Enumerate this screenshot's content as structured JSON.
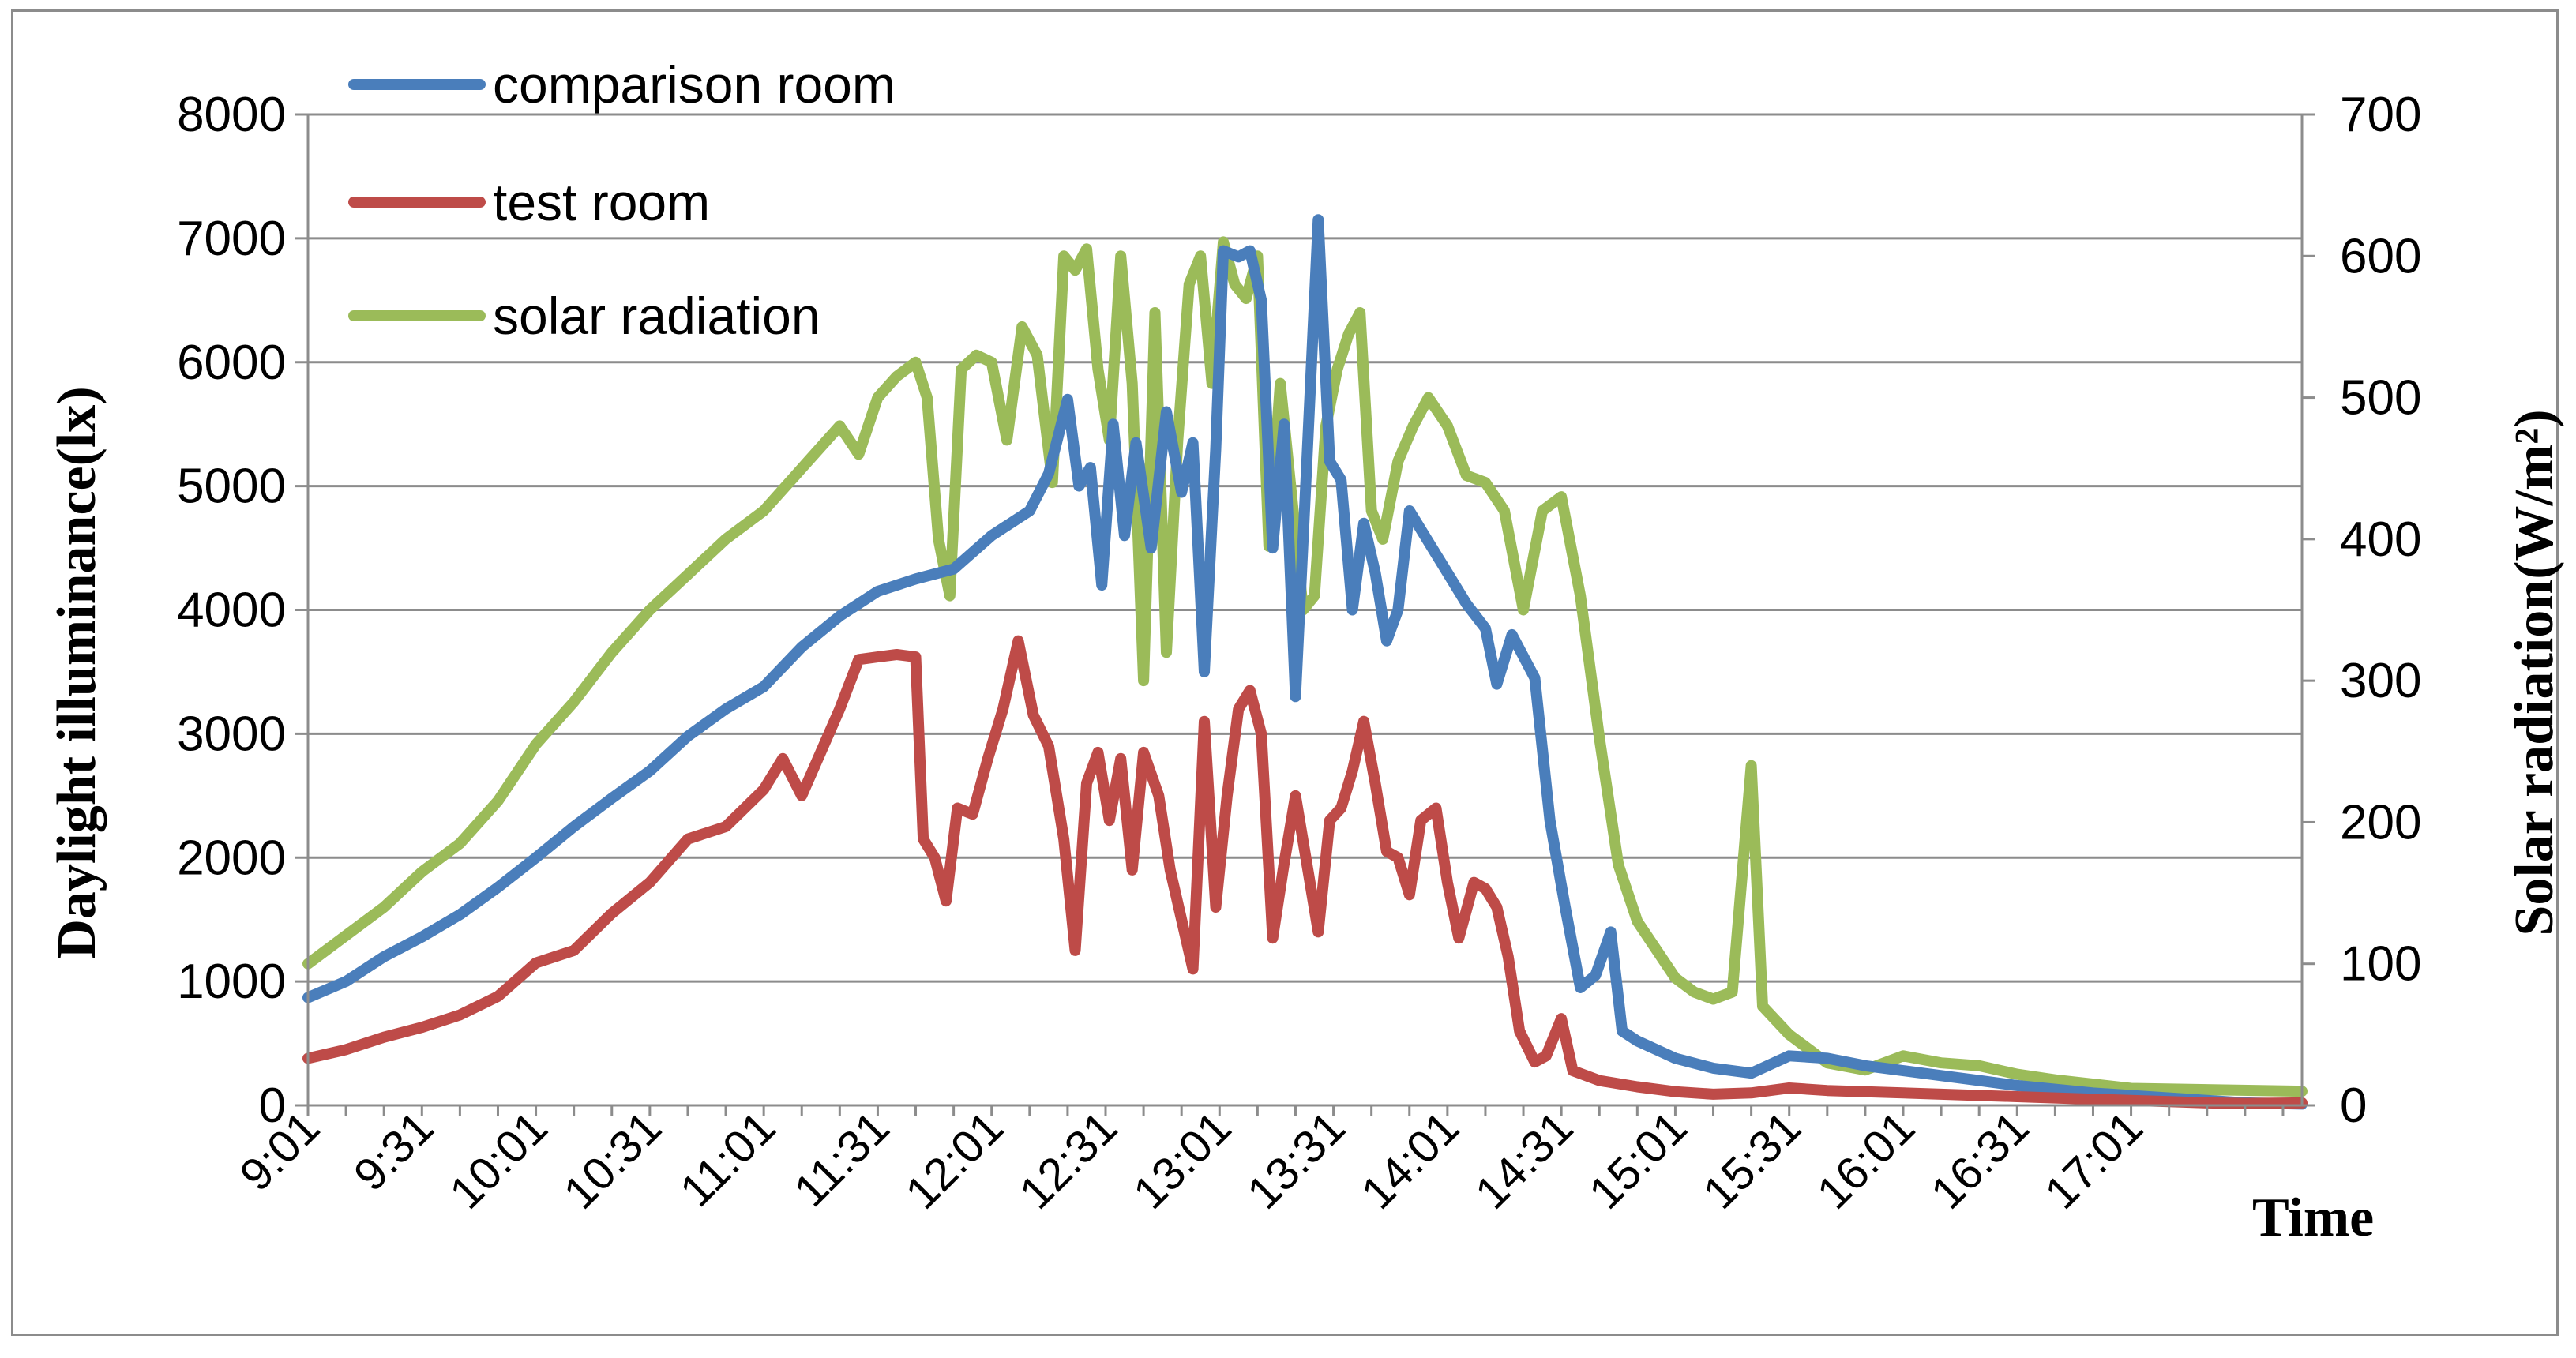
{
  "chart_data": {
    "type": "line",
    "ylabel": "Daylight illuminance(lx)",
    "y2label": "Solar radiation(W/m²)",
    "xlabel": "Time",
    "ylim": [
      0,
      8000
    ],
    "y2lim": [
      0,
      700
    ],
    "y_ticks": [
      "0",
      "1000",
      "2000",
      "3000",
      "4000",
      "5000",
      "6000",
      "7000",
      "8000"
    ],
    "y2_ticks": [
      "0",
      "100",
      "200",
      "300",
      "400",
      "500",
      "600",
      "700"
    ],
    "x_ticks": [
      "9:01",
      "9:31",
      "10:01",
      "10:31",
      "11:01",
      "11:31",
      "12:01",
      "12:31",
      "13:01",
      "13:31",
      "14:01",
      "14:31",
      "15:01",
      "15:31",
      "16:01",
      "16:31",
      "17:01"
    ],
    "xlim": [
      "9:01",
      "17:46"
    ],
    "grid": "horizontal",
    "legend": "top-left",
    "series": [
      {
        "name": "comparison room",
        "axis": "left",
        "color": "#4a7ebb",
        "points": [
          [
            "9:01",
            870
          ],
          [
            "9:11",
            1000
          ],
          [
            "9:21",
            1200
          ],
          [
            "9:31",
            1360
          ],
          [
            "9:41",
            1540
          ],
          [
            "9:51",
            1760
          ],
          [
            "10:01",
            2000
          ],
          [
            "10:11",
            2250
          ],
          [
            "10:21",
            2480
          ],
          [
            "10:31",
            2700
          ],
          [
            "10:41",
            2980
          ],
          [
            "10:51",
            3200
          ],
          [
            "11:01",
            3380
          ],
          [
            "11:11",
            3700
          ],
          [
            "11:21",
            3950
          ],
          [
            "11:31",
            4150
          ],
          [
            "11:41",
            4250
          ],
          [
            "11:51",
            4330
          ],
          [
            "12:01",
            4600
          ],
          [
            "12:11",
            4800
          ],
          [
            "12:16",
            5100
          ],
          [
            "12:21",
            5700
          ],
          [
            "12:24",
            5000
          ],
          [
            "12:27",
            5150
          ],
          [
            "12:30",
            4200
          ],
          [
            "12:33",
            5500
          ],
          [
            "12:36",
            4600
          ],
          [
            "12:39",
            5350
          ],
          [
            "12:43",
            4500
          ],
          [
            "12:47",
            5600
          ],
          [
            "12:51",
            4950
          ],
          [
            "12:54",
            5350
          ],
          [
            "12:57",
            3500
          ],
          [
            "13:00",
            5300
          ],
          [
            "13:02",
            6900
          ],
          [
            "13:06",
            6850
          ],
          [
            "13:09",
            6900
          ],
          [
            "13:12",
            6500
          ],
          [
            "13:15",
            4500
          ],
          [
            "13:18",
            5500
          ],
          [
            "13:21",
            3300
          ],
          [
            "13:24",
            5200
          ],
          [
            "13:27",
            7150
          ],
          [
            "13:30",
            5200
          ],
          [
            "13:33",
            5050
          ],
          [
            "13:36",
            4000
          ],
          [
            "13:39",
            4700
          ],
          [
            "13:42",
            4300
          ],
          [
            "13:45",
            3750
          ],
          [
            "13:48",
            4000
          ],
          [
            "13:51",
            4800
          ],
          [
            "13:54",
            4650
          ],
          [
            "13:58",
            4450
          ],
          [
            "14:01",
            4300
          ],
          [
            "14:06",
            4050
          ],
          [
            "14:11",
            3850
          ],
          [
            "14:14",
            3400
          ],
          [
            "14:18",
            3800
          ],
          [
            "14:24",
            3450
          ],
          [
            "14:28",
            2300
          ],
          [
            "14:32",
            1600
          ],
          [
            "14:36",
            950
          ],
          [
            "14:40",
            1050
          ],
          [
            "14:44",
            1400
          ],
          [
            "14:47",
            600
          ],
          [
            "14:51",
            520
          ],
          [
            "15:01",
            380
          ],
          [
            "15:11",
            300
          ],
          [
            "15:21",
            260
          ],
          [
            "15:31",
            400
          ],
          [
            "15:41",
            380
          ],
          [
            "15:51",
            320
          ],
          [
            "16:01",
            280
          ],
          [
            "16:11",
            240
          ],
          [
            "16:21",
            200
          ],
          [
            "16:31",
            160
          ],
          [
            "16:41",
            130
          ],
          [
            "16:51",
            100
          ],
          [
            "17:01",
            80
          ],
          [
            "17:11",
            60
          ],
          [
            "17:21",
            40
          ],
          [
            "17:31",
            20
          ],
          [
            "17:46",
            10
          ]
        ]
      },
      {
        "name": "test room",
        "axis": "left",
        "color": "#be4b48",
        "points": [
          [
            "9:01",
            380
          ],
          [
            "9:11",
            450
          ],
          [
            "9:21",
            550
          ],
          [
            "9:31",
            630
          ],
          [
            "9:41",
            730
          ],
          [
            "9:51",
            880
          ],
          [
            "10:01",
            1150
          ],
          [
            "10:11",
            1250
          ],
          [
            "10:21",
            1550
          ],
          [
            "10:31",
            1800
          ],
          [
            "10:41",
            2150
          ],
          [
            "10:51",
            2250
          ],
          [
            "11:01",
            2550
          ],
          [
            "11:06",
            2800
          ],
          [
            "11:11",
            2500
          ],
          [
            "11:21",
            3200
          ],
          [
            "11:26",
            3600
          ],
          [
            "11:31",
            3620
          ],
          [
            "11:36",
            3640
          ],
          [
            "11:41",
            3620
          ],
          [
            "11:43",
            2150
          ],
          [
            "11:46",
            2000
          ],
          [
            "11:49",
            1650
          ],
          [
            "11:52",
            2400
          ],
          [
            "11:56",
            2350
          ],
          [
            "12:00",
            2800
          ],
          [
            "12:04",
            3200
          ],
          [
            "12:08",
            3750
          ],
          [
            "12:12",
            3150
          ],
          [
            "12:16",
            2900
          ],
          [
            "12:20",
            2150
          ],
          [
            "12:23",
            1250
          ],
          [
            "12:26",
            2600
          ],
          [
            "12:29",
            2850
          ],
          [
            "12:32",
            2300
          ],
          [
            "12:35",
            2800
          ],
          [
            "12:38",
            1900
          ],
          [
            "12:41",
            2850
          ],
          [
            "12:45",
            2500
          ],
          [
            "12:48",
            1900
          ],
          [
            "12:51",
            1500
          ],
          [
            "12:54",
            1100
          ],
          [
            "12:57",
            3100
          ],
          [
            "13:00",
            1600
          ],
          [
            "13:03",
            2500
          ],
          [
            "13:06",
            3200
          ],
          [
            "13:09",
            3350
          ],
          [
            "13:12",
            3000
          ],
          [
            "13:15",
            1350
          ],
          [
            "13:18",
            1950
          ],
          [
            "13:21",
            2500
          ],
          [
            "13:24",
            1950
          ],
          [
            "13:27",
            1400
          ],
          [
            "13:30",
            2300
          ],
          [
            "13:33",
            2400
          ],
          [
            "13:36",
            2700
          ],
          [
            "13:39",
            3100
          ],
          [
            "13:42",
            2600
          ],
          [
            "13:45",
            2050
          ],
          [
            "13:48",
            2000
          ],
          [
            "13:51",
            1700
          ],
          [
            "13:54",
            2300
          ],
          [
            "13:58",
            2400
          ],
          [
            "14:01",
            1800
          ],
          [
            "14:04",
            1350
          ],
          [
            "14:08",
            1800
          ],
          [
            "14:11",
            1750
          ],
          [
            "14:14",
            1600
          ],
          [
            "14:17",
            1200
          ],
          [
            "14:20",
            600
          ],
          [
            "14:24",
            350
          ],
          [
            "14:27",
            400
          ],
          [
            "14:31",
            700
          ],
          [
            "14:34",
            280
          ],
          [
            "14:41",
            200
          ],
          [
            "14:51",
            150
          ],
          [
            "15:01",
            110
          ],
          [
            "15:11",
            90
          ],
          [
            "15:21",
            100
          ],
          [
            "15:31",
            140
          ],
          [
            "15:41",
            120
          ],
          [
            "15:51",
            110
          ],
          [
            "16:01",
            100
          ],
          [
            "16:11",
            90
          ],
          [
            "16:21",
            80
          ],
          [
            "16:31",
            70
          ],
          [
            "16:41",
            60
          ],
          [
            "16:51",
            50
          ],
          [
            "17:01",
            40
          ],
          [
            "17:11",
            30
          ],
          [
            "17:21",
            20
          ],
          [
            "17:31",
            15
          ],
          [
            "17:46",
            20
          ]
        ]
      },
      {
        "name": "solar radiation",
        "axis": "right",
        "color": "#9bbb59",
        "points": [
          [
            "9:01",
            100
          ],
          [
            "9:11",
            120
          ],
          [
            "9:21",
            140
          ],
          [
            "9:31",
            165
          ],
          [
            "9:41",
            185
          ],
          [
            "9:51",
            215
          ],
          [
            "10:01",
            255
          ],
          [
            "10:11",
            285
          ],
          [
            "10:21",
            320
          ],
          [
            "10:31",
            350
          ],
          [
            "10:41",
            375
          ],
          [
            "10:51",
            400
          ],
          [
            "11:01",
            420
          ],
          [
            "11:11",
            450
          ],
          [
            "11:21",
            480
          ],
          [
            "11:26",
            460
          ],
          [
            "11:31",
            500
          ],
          [
            "11:36",
            515
          ],
          [
            "11:41",
            525
          ],
          [
            "11:44",
            500
          ],
          [
            "11:47",
            400
          ],
          [
            "11:50",
            360
          ],
          [
            "11:53",
            520
          ],
          [
            "11:57",
            530
          ],
          [
            "12:01",
            525
          ],
          [
            "12:05",
            470
          ],
          [
            "12:09",
            550
          ],
          [
            "12:13",
            530
          ],
          [
            "12:17",
            440
          ],
          [
            "12:20",
            600
          ],
          [
            "12:23",
            590
          ],
          [
            "12:26",
            605
          ],
          [
            "12:29",
            520
          ],
          [
            "12:32",
            470
          ],
          [
            "12:35",
            600
          ],
          [
            "12:38",
            510
          ],
          [
            "12:41",
            300
          ],
          [
            "12:44",
            560
          ],
          [
            "12:47",
            320
          ],
          [
            "12:50",
            470
          ],
          [
            "12:53",
            580
          ],
          [
            "12:56",
            600
          ],
          [
            "12:59",
            510
          ],
          [
            "13:02",
            610
          ],
          [
            "13:05",
            580
          ],
          [
            "13:08",
            570
          ],
          [
            "13:11",
            600
          ],
          [
            "13:14",
            395
          ],
          [
            "13:17",
            510
          ],
          [
            "13:20",
            430
          ],
          [
            "13:23",
            350
          ],
          [
            "13:26",
            360
          ],
          [
            "13:29",
            480
          ],
          [
            "13:32",
            520
          ],
          [
            "13:35",
            545
          ],
          [
            "13:38",
            560
          ],
          [
            "13:41",
            420
          ],
          [
            "13:44",
            400
          ],
          [
            "13:48",
            455
          ],
          [
            "13:52",
            480
          ],
          [
            "13:56",
            500
          ],
          [
            "14:01",
            480
          ],
          [
            "14:06",
            445
          ],
          [
            "14:11",
            440
          ],
          [
            "14:16",
            420
          ],
          [
            "14:21",
            350
          ],
          [
            "14:26",
            420
          ],
          [
            "14:31",
            430
          ],
          [
            "14:36",
            360
          ],
          [
            "14:41",
            260
          ],
          [
            "14:46",
            170
          ],
          [
            "14:51",
            130
          ],
          [
            "14:56",
            110
          ],
          [
            "15:01",
            90
          ],
          [
            "15:06",
            80
          ],
          [
            "15:11",
            75
          ],
          [
            "15:16",
            80
          ],
          [
            "15:21",
            240
          ],
          [
            "15:24",
            70
          ],
          [
            "15:31",
            50
          ],
          [
            "15:41",
            30
          ],
          [
            "15:51",
            25
          ],
          [
            "16:01",
            35
          ],
          [
            "16:11",
            30
          ],
          [
            "16:21",
            28
          ],
          [
            "16:31",
            22
          ],
          [
            "16:41",
            18
          ],
          [
            "16:51",
            15
          ],
          [
            "17:01",
            12
          ],
          [
            "17:46",
            10
          ]
        ]
      }
    ]
  }
}
